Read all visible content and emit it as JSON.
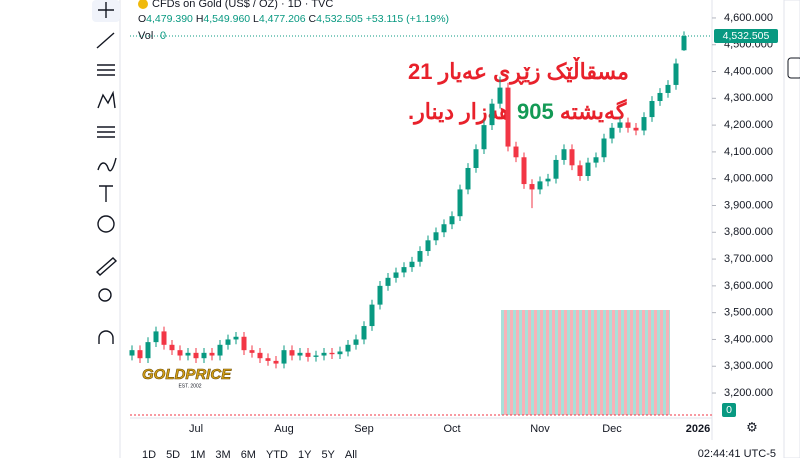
{
  "header": {
    "symbol": "CFDs on Gold (US$ / OZ) · 1D · TVC",
    "open_label": "O",
    "open": "4,479.390",
    "high_label": "H",
    "high": "4,549.960",
    "low_label": "L",
    "low": "4,477.206",
    "close_label": "C",
    "close": "4,532.505",
    "change": "+53.115 (+1.19%)",
    "volume_label": "Vol",
    "volume_value": "0"
  },
  "overlay": {
    "line1": "مسقاڵێک زێڕی عەیار 21",
    "line2_start": "گەیشتە",
    "line2_number": "905",
    "line2_end": "هەزار دینار."
  },
  "logo": {
    "name": "GOLDPRICE",
    "since": "EST. 2002"
  },
  "chart_data": {
    "type": "candlestick",
    "categories": [
      null,
      null,
      null,
      null,
      null,
      null,
      null,
      null,
      "Jul",
      null,
      null,
      null,
      null,
      null,
      null,
      null,
      null,
      null,
      null,
      "Aug",
      null,
      null,
      null,
      null,
      null,
      null,
      null,
      null,
      null,
      "Sep",
      null,
      null,
      null,
      null,
      null,
      null,
      null,
      null,
      null,
      null,
      "Oct",
      null,
      null,
      null,
      null,
      null,
      null,
      null,
      null,
      null,
      null,
      "Nov",
      null,
      null,
      null,
      null,
      null,
      null,
      null,
      null,
      "Dec",
      null,
      null,
      null,
      null,
      null,
      null,
      null,
      null,
      null
    ],
    "next_period_label": "2026",
    "open": [
      3340,
      3360,
      3330,
      3390,
      3430,
      3380,
      3360,
      3340,
      3350,
      3330,
      3350,
      3340,
      3380,
      3400,
      3410,
      3360,
      3350,
      3330,
      3320,
      3310,
      3360,
      3340,
      3350,
      3335,
      3340,
      3350,
      3345,
      3355,
      3380,
      3400,
      3450,
      3530,
      3600,
      3630,
      3650,
      3670,
      3690,
      3730,
      3770,
      3800,
      3830,
      3860,
      3960,
      4040,
      4110,
      4200,
      4280,
      4340,
      4120,
      4080,
      3980,
      3960,
      3990,
      4000,
      4070,
      4110,
      4050,
      4010,
      4060,
      4080,
      4150,
      4190,
      4210,
      4190,
      4180,
      4230,
      4290,
      4320,
      4350,
      4479.39
    ],
    "high": [
      3378,
      3378,
      3408,
      3448,
      3448,
      3398,
      3378,
      3368,
      3368,
      3368,
      3368,
      3398,
      3418,
      3428,
      3428,
      3378,
      3368,
      3348,
      3338,
      3378,
      3378,
      3368,
      3368,
      3358,
      3368,
      3368,
      3373,
      3398,
      3418,
      3468,
      3548,
      3618,
      3648,
      3668,
      3688,
      3708,
      3748,
      3788,
      3818,
      3848,
      3878,
      3978,
      4058,
      4128,
      4218,
      4298,
      4381,
      4358,
      4138,
      4098,
      3998,
      4008,
      4018,
      4088,
      4128,
      4128,
      4068,
      4078,
      4098,
      4168,
      4208,
      4228,
      4228,
      4208,
      4248,
      4308,
      4338,
      4368,
      4448,
      4549.96
    ],
    "low": [
      3322,
      3312,
      3312,
      3372,
      3362,
      3342,
      3322,
      3322,
      3312,
      3312,
      3322,
      3322,
      3362,
      3382,
      3342,
      3332,
      3312,
      3302,
      3292,
      3292,
      3322,
      3322,
      3317,
      3317,
      3322,
      3327,
      3327,
      3337,
      3362,
      3382,
      3432,
      3512,
      3582,
      3612,
      3632,
      3652,
      3672,
      3712,
      3752,
      3782,
      3812,
      3842,
      3942,
      4022,
      4092,
      4182,
      4262,
      4102,
      4062,
      3962,
      3890,
      3942,
      3972,
      3982,
      4052,
      4032,
      3992,
      3992,
      4042,
      4062,
      4132,
      4172,
      4172,
      4162,
      4162,
      4212,
      4272,
      4302,
      4332,
      4477.206
    ],
    "close": [
      3360,
      3330,
      3390,
      3430,
      3380,
      3360,
      3340,
      3350,
      3330,
      3350,
      3340,
      3380,
      3400,
      3410,
      3360,
      3350,
      3330,
      3320,
      3310,
      3360,
      3340,
      3350,
      3335,
      3340,
      3350,
      3345,
      3355,
      3380,
      3400,
      3450,
      3530,
      3600,
      3630,
      3650,
      3670,
      3690,
      3730,
      3770,
      3800,
      3830,
      3860,
      3960,
      4040,
      4110,
      4200,
      4280,
      4340,
      4120,
      4080,
      3980,
      3960,
      3990,
      4000,
      4070,
      4110,
      4050,
      4010,
      4060,
      4080,
      4150,
      4190,
      4210,
      4190,
      4180,
      4230,
      4290,
      4320,
      4350,
      4430,
      4532.505
    ],
    "up_color": "#089981",
    "down_color": "#f23645",
    "last_price_label": "4,532.505",
    "volume_axis_label": "0",
    "ylim": [
      3118,
      4667
    ],
    "yticks": [
      {
        "value": 3200,
        "label": "3,200.000"
      },
      {
        "value": 3300,
        "label": "3,300.000"
      },
      {
        "value": 3400,
        "label": "3,400.000"
      },
      {
        "value": 3500,
        "label": "3,500.000"
      },
      {
        "value": 3600,
        "label": "3,600.000"
      },
      {
        "value": 3700,
        "label": "3,700.000"
      },
      {
        "value": 3800,
        "label": "3,800.000"
      },
      {
        "value": 3900,
        "label": "3,900.000"
      },
      {
        "value": 4000,
        "label": "4,000.000"
      },
      {
        "value": 4100,
        "label": "4,100.000"
      },
      {
        "value": 4200,
        "label": "4,200.000"
      },
      {
        "value": 4300,
        "label": "4,300.000"
      },
      {
        "value": 4400,
        "label": "4,400.000"
      },
      {
        "value": 4500,
        "label": "4,500.000"
      },
      {
        "value": 4600,
        "label": "4,600.000"
      }
    ]
  },
  "timeframes": [
    "1D",
    "5D",
    "1M",
    "3M",
    "6M",
    "YTD",
    "1Y",
    "5Y",
    "All"
  ],
  "clock": "02:44:41 UTC-5"
}
